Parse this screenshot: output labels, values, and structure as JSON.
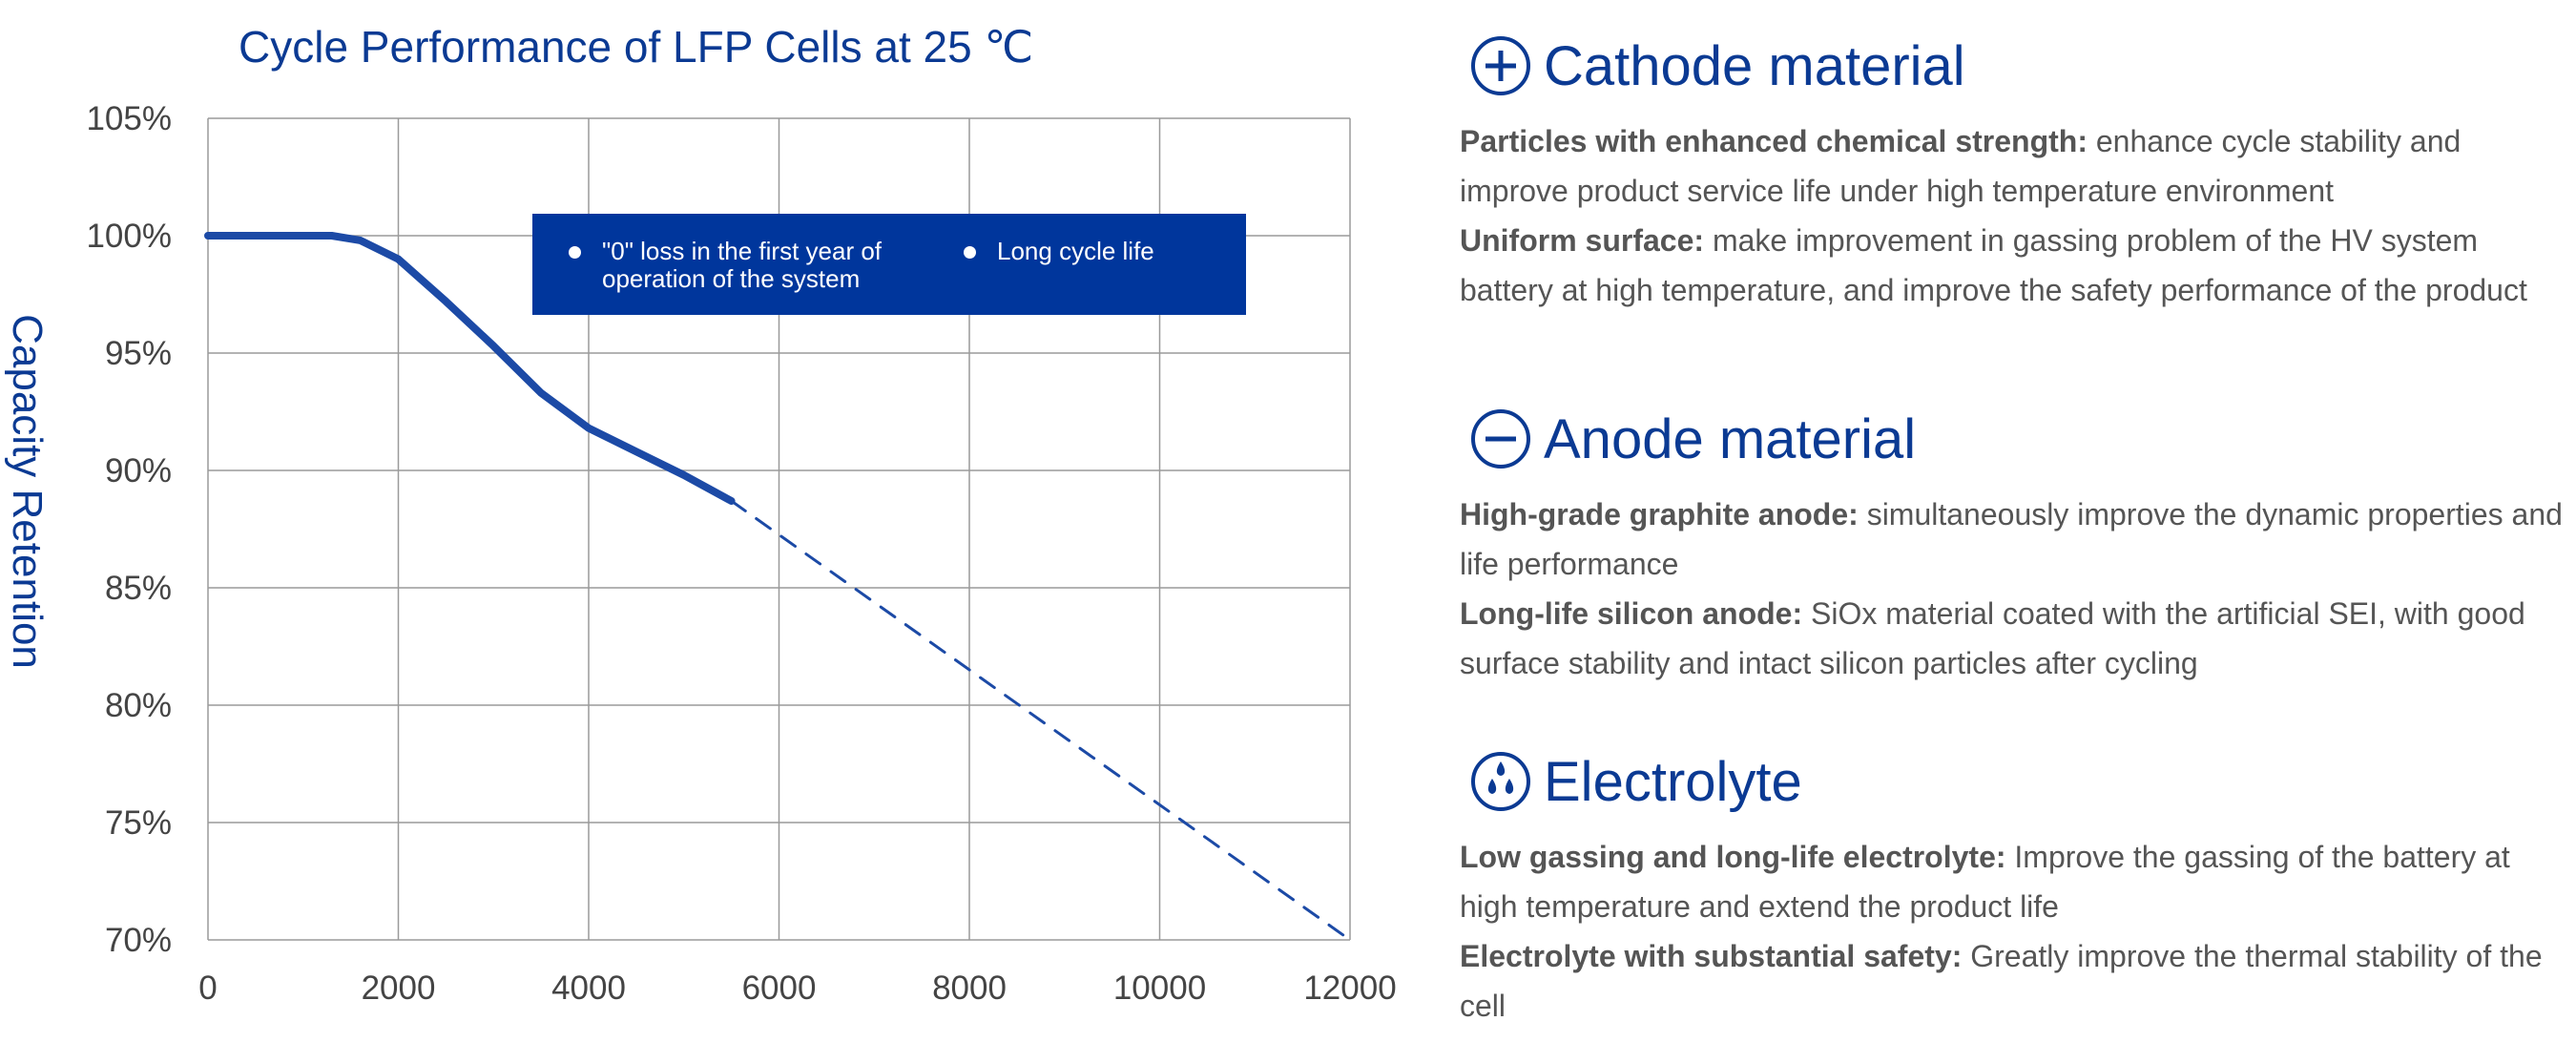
{
  "chart_data": {
    "type": "line",
    "title": "Cycle Performance of LFP Cells at 25 ℃",
    "xlabel": "",
    "ylabel": "Capacity Retention",
    "xlim": [
      0,
      12000
    ],
    "ylim": [
      70,
      105
    ],
    "x_ticks": [
      "0",
      "2000",
      "4000",
      "6000",
      "8000",
      "10000",
      "12000"
    ],
    "y_ticks": [
      "70%",
      "75%",
      "80%",
      "85%",
      "90%",
      "95%",
      "100%",
      "105%"
    ],
    "grid": true,
    "series": [
      {
        "style": "solid",
        "color": "#1c4aa6",
        "x": [
          0,
          1000,
          1300,
          1600,
          2000,
          2500,
          3000,
          3500,
          4000,
          4500,
          5000,
          5500
        ],
        "y": [
          100,
          100,
          100,
          99.8,
          99.0,
          97.2,
          95.3,
          93.3,
          91.8,
          90.8,
          89.8,
          88.7
        ]
      },
      {
        "style": "dashed",
        "color": "#1c4aa6",
        "x": [
          5500,
          12000
        ],
        "y": [
          88.7,
          70
        ]
      }
    ],
    "legend": {
      "placement": "top-center",
      "items": [
        "\"0\" loss in the first year of operation of the system",
        "Long cycle life"
      ]
    }
  },
  "features": {
    "sections": [
      {
        "icon": "plus-circle-icon",
        "title": "Cathode material",
        "paragraphs": [
          {
            "bold": "Particles with enhanced chemical strength:",
            "text": " enhance cycle stability and improve product service life under high temperature environment"
          },
          {
            "bold": "Uniform surface:",
            "text": " make improvement in gassing problem of the HV system battery at high temperature, and improve the safety performance of the product"
          }
        ]
      },
      {
        "icon": "minus-circle-icon",
        "title": "Anode material",
        "paragraphs": [
          {
            "bold": "High-grade graphite anode:",
            "text": " simultaneously improve the dynamic properties and life performance"
          },
          {
            "bold": "Long-life silicon anode:",
            "text": " SiOx material coated with the artificial SEI, with good surface stability and intact silicon particles after cycling"
          }
        ]
      },
      {
        "icon": "droplets-circle-icon",
        "title": "Electrolyte",
        "paragraphs": [
          {
            "bold": "Low gassing and long-life electrolyte:",
            "text": " Improve the gassing of the battery at high temperature and extend the product life"
          },
          {
            "bold": "Electrolyte with substantial safety:",
            "text": " Greatly improve the thermal stability of the cell"
          }
        ]
      }
    ]
  }
}
